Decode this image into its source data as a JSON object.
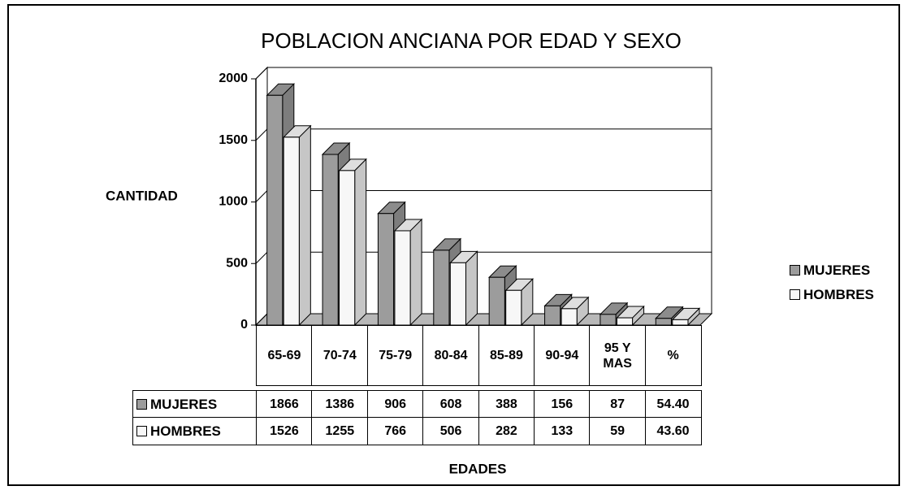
{
  "chart_data": {
    "type": "bar",
    "title": "POBLACION ANCIANA POR EDAD Y SEXO",
    "y_label": "CANTIDAD",
    "x_label": "EDADES",
    "categories": [
      "65-69",
      "70-74",
      "75-79",
      "80-84",
      "85-89",
      "90-94",
      "95 Y MAS",
      "%"
    ],
    "series": [
      {
        "name": "MUJERES",
        "color": "#9c9c9c",
        "values": [
          1866,
          1386,
          906,
          608,
          388,
          156,
          87,
          54.4
        ],
        "value_labels": [
          "1866",
          "1386",
          "906",
          "608",
          "388",
          "156",
          "87",
          "54.40"
        ]
      },
      {
        "name": "HOMBRES",
        "color": "#f7f7f7",
        "values": [
          1526,
          1255,
          766,
          506,
          282,
          133,
          59,
          43.6
        ],
        "value_labels": [
          "1526",
          "1255",
          "766",
          "506",
          "282",
          "133",
          "59",
          "43.60"
        ]
      }
    ],
    "ylim": [
      0,
      2000
    ],
    "yticks": [
      0,
      500,
      1000,
      1500,
      2000
    ],
    "grid": true,
    "legend": "right"
  }
}
